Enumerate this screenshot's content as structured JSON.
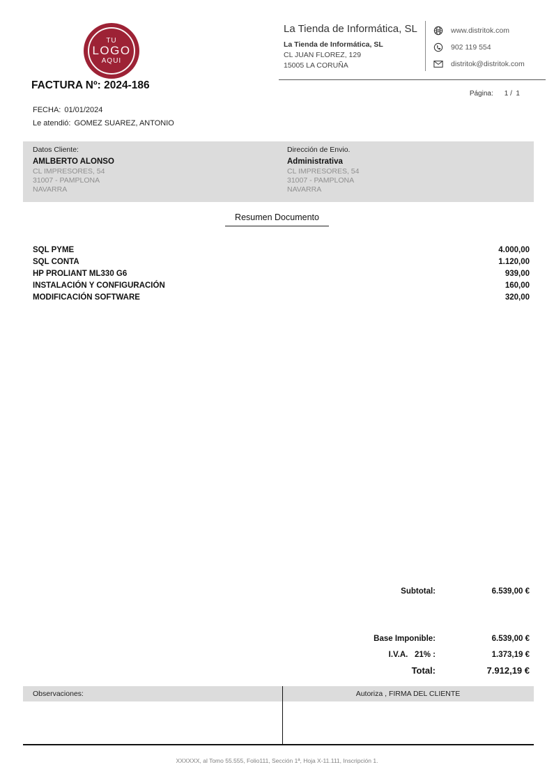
{
  "colors": {
    "logo_red": "#9d2235",
    "band_gray": "#dcdcdc"
  },
  "logo": {
    "top": "TU",
    "middle": "LOGO",
    "bottom": "AQUI"
  },
  "company": {
    "name": "La Tienda de Informática, SL",
    "address_lines": [
      "La Tienda de Informática, SL",
      "CL JUAN FLOREZ, 129",
      "15005 LA CORUÑA"
    ],
    "contacts": [
      {
        "icon": "globe-icon",
        "text": "www.distritok.com"
      },
      {
        "icon": "phone-icon",
        "text": "902 119 554"
      },
      {
        "icon": "envelope-icon",
        "text": "distritok@distritok.com"
      }
    ]
  },
  "page_indicator": {
    "label": "Página:",
    "value": "1 /  1"
  },
  "invoice": {
    "title": "FACTURA Nº: 2024-186",
    "date_label": "FECHA:",
    "date": "01/01/2024",
    "attended_label": "Le atendió:",
    "attended_by": "GOMEZ SUAREZ, ANTONIO"
  },
  "client": {
    "label": "Datos Cliente:",
    "name": "AMLBERTO ALONSO",
    "address_lines": [
      "CL IMPRESORES, 54",
      "31007 - PAMPLONA",
      "NAVARRA"
    ]
  },
  "shipping": {
    "label": "Dirección de Envio.",
    "name": "Administrativa",
    "address_lines": [
      "CL IMPRESORES, 54",
      "31007 - PAMPLONA",
      "NAVARRA"
    ]
  },
  "summary": {
    "title": "Resumen Documento",
    "items": [
      {
        "description": "SQL PYME",
        "amount": "4.000,00"
      },
      {
        "description": "SQL CONTA",
        "amount": "1.120,00"
      },
      {
        "description": "HP PROLIANT ML330 G6",
        "amount": "939,00"
      },
      {
        "description": "INSTALACIÓN Y CONFIGURACIÓN",
        "amount": "160,00"
      },
      {
        "description": "MODIFICACIÓN SOFTWARE",
        "amount": "320,00"
      }
    ]
  },
  "totals": {
    "subtotal_label": "Subtotal:",
    "subtotal": "6.539,00 €",
    "base_label": "Base Imponible:",
    "base": "6.539,00 €",
    "iva_label": "I.V.A.   21% :",
    "iva": "1.373,19 €",
    "total_label": "Total:",
    "total": "7.912,19 €"
  },
  "footer_section": {
    "observations_label": "Observaciones:",
    "authorize_label": "Autoriza , FIRMA DEL CLIENTE"
  },
  "legal_footer": "XXXXXX, al Tomo 55.555, Folio111, Sección 1ª, Hoja X-11.111, Inscripción 1."
}
